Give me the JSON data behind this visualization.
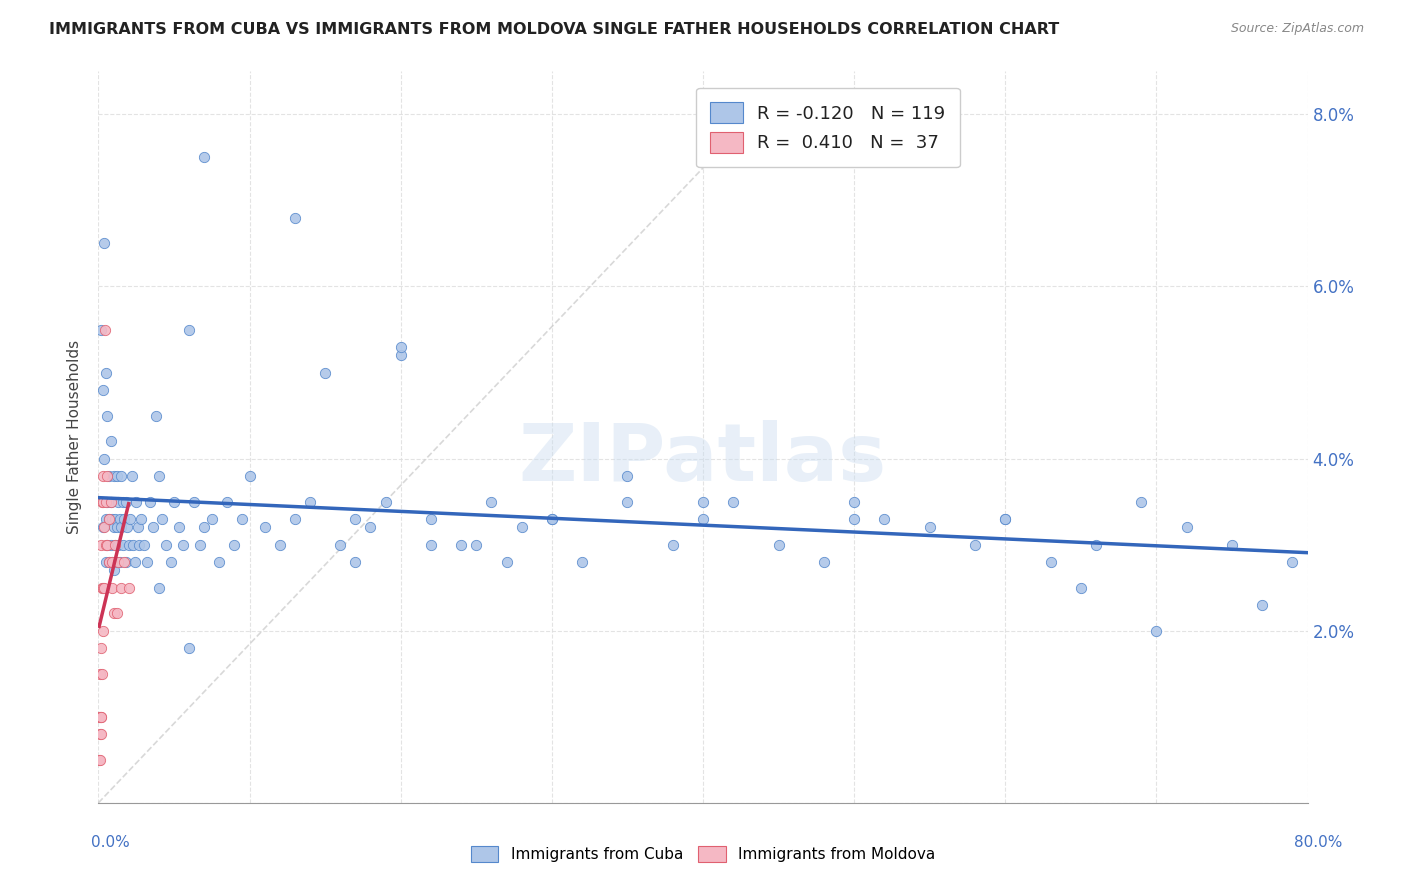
{
  "title": "IMMIGRANTS FROM CUBA VS IMMIGRANTS FROM MOLDOVA SINGLE FATHER HOUSEHOLDS CORRELATION CHART",
  "source": "Source: ZipAtlas.com",
  "ylabel": "Single Father Households",
  "watermark": "ZIPatlas",
  "cuba_color": "#aec6e8",
  "cuba_edge_color": "#5588cc",
  "moldova_color": "#f5b8c4",
  "moldova_edge_color": "#e06070",
  "cuba_line_color": "#3366bb",
  "moldova_line_color": "#cc3355",
  "background_color": "#ffffff",
  "grid_color": "#dddddd",
  "title_color": "#222222",
  "right_axis_color": "#4472c4",
  "xlim": [
    0.0,
    0.8
  ],
  "ylim": [
    0.0,
    0.085
  ],
  "figsize": [
    14.06,
    8.92
  ],
  "dpi": 100,
  "cuba_scatter_x": [
    0.002,
    0.003,
    0.003,
    0.004,
    0.004,
    0.005,
    0.005,
    0.005,
    0.006,
    0.006,
    0.006,
    0.007,
    0.007,
    0.007,
    0.008,
    0.008,
    0.008,
    0.009,
    0.009,
    0.01,
    0.01,
    0.01,
    0.011,
    0.011,
    0.012,
    0.012,
    0.012,
    0.013,
    0.013,
    0.014,
    0.014,
    0.015,
    0.015,
    0.016,
    0.016,
    0.017,
    0.018,
    0.018,
    0.019,
    0.02,
    0.021,
    0.022,
    0.023,
    0.024,
    0.025,
    0.026,
    0.027,
    0.028,
    0.03,
    0.032,
    0.034,
    0.036,
    0.038,
    0.04,
    0.042,
    0.045,
    0.048,
    0.05,
    0.053,
    0.056,
    0.06,
    0.063,
    0.067,
    0.07,
    0.075,
    0.08,
    0.085,
    0.09,
    0.095,
    0.1,
    0.11,
    0.12,
    0.13,
    0.14,
    0.15,
    0.16,
    0.17,
    0.18,
    0.19,
    0.2,
    0.22,
    0.24,
    0.26,
    0.28,
    0.3,
    0.32,
    0.35,
    0.38,
    0.4,
    0.42,
    0.45,
    0.48,
    0.5,
    0.52,
    0.55,
    0.58,
    0.6,
    0.63,
    0.66,
    0.69,
    0.72,
    0.75,
    0.77,
    0.79,
    0.2,
    0.25,
    0.3,
    0.35,
    0.4,
    0.5,
    0.6,
    0.65,
    0.7,
    0.07,
    0.13,
    0.17,
    0.22,
    0.27,
    0.04,
    0.06
  ],
  "cuba_scatter_y": [
    0.055,
    0.048,
    0.032,
    0.065,
    0.04,
    0.033,
    0.028,
    0.05,
    0.035,
    0.045,
    0.03,
    0.038,
    0.033,
    0.028,
    0.042,
    0.035,
    0.03,
    0.033,
    0.028,
    0.038,
    0.032,
    0.027,
    0.033,
    0.03,
    0.038,
    0.032,
    0.028,
    0.035,
    0.03,
    0.033,
    0.028,
    0.038,
    0.032,
    0.035,
    0.03,
    0.033,
    0.028,
    0.035,
    0.032,
    0.03,
    0.033,
    0.038,
    0.03,
    0.028,
    0.035,
    0.032,
    0.03,
    0.033,
    0.03,
    0.028,
    0.035,
    0.032,
    0.045,
    0.038,
    0.033,
    0.03,
    0.028,
    0.035,
    0.032,
    0.03,
    0.055,
    0.035,
    0.03,
    0.032,
    0.033,
    0.028,
    0.035,
    0.03,
    0.033,
    0.038,
    0.032,
    0.03,
    0.033,
    0.035,
    0.05,
    0.03,
    0.028,
    0.032,
    0.035,
    0.052,
    0.033,
    0.03,
    0.035,
    0.032,
    0.033,
    0.028,
    0.038,
    0.03,
    0.033,
    0.035,
    0.03,
    0.028,
    0.035,
    0.033,
    0.032,
    0.03,
    0.033,
    0.028,
    0.03,
    0.035,
    0.032,
    0.03,
    0.023,
    0.028,
    0.053,
    0.03,
    0.033,
    0.035,
    0.035,
    0.033,
    0.033,
    0.025,
    0.02,
    0.075,
    0.068,
    0.033,
    0.03,
    0.028,
    0.025,
    0.018
  ],
  "moldova_scatter_x": [
    0.0005,
    0.0007,
    0.001,
    0.001,
    0.0012,
    0.0013,
    0.0015,
    0.0015,
    0.0018,
    0.002,
    0.002,
    0.0022,
    0.0025,
    0.0025,
    0.003,
    0.003,
    0.003,
    0.0032,
    0.004,
    0.004,
    0.0042,
    0.005,
    0.005,
    0.006,
    0.006,
    0.007,
    0.007,
    0.008,
    0.009,
    0.009,
    0.01,
    0.011,
    0.012,
    0.013,
    0.015,
    0.017,
    0.02
  ],
  "moldova_scatter_y": [
    0.005,
    0.01,
    0.01,
    0.015,
    0.005,
    0.008,
    0.01,
    0.03,
    0.008,
    0.01,
    0.018,
    0.025,
    0.015,
    0.035,
    0.02,
    0.025,
    0.035,
    0.038,
    0.025,
    0.032,
    0.055,
    0.03,
    0.035,
    0.03,
    0.038,
    0.033,
    0.028,
    0.035,
    0.028,
    0.025,
    0.022,
    0.03,
    0.022,
    0.028,
    0.025,
    0.028,
    0.025
  ],
  "ytick_positions": [
    0.0,
    0.02,
    0.04,
    0.06,
    0.08
  ],
  "ytick_labels_right": [
    "",
    "2.0%",
    "4.0%",
    "6.0%",
    "8.0%"
  ],
  "xtick_minor_positions": [
    0.0,
    0.1,
    0.2,
    0.3,
    0.4,
    0.5,
    0.6,
    0.7,
    0.8
  ]
}
